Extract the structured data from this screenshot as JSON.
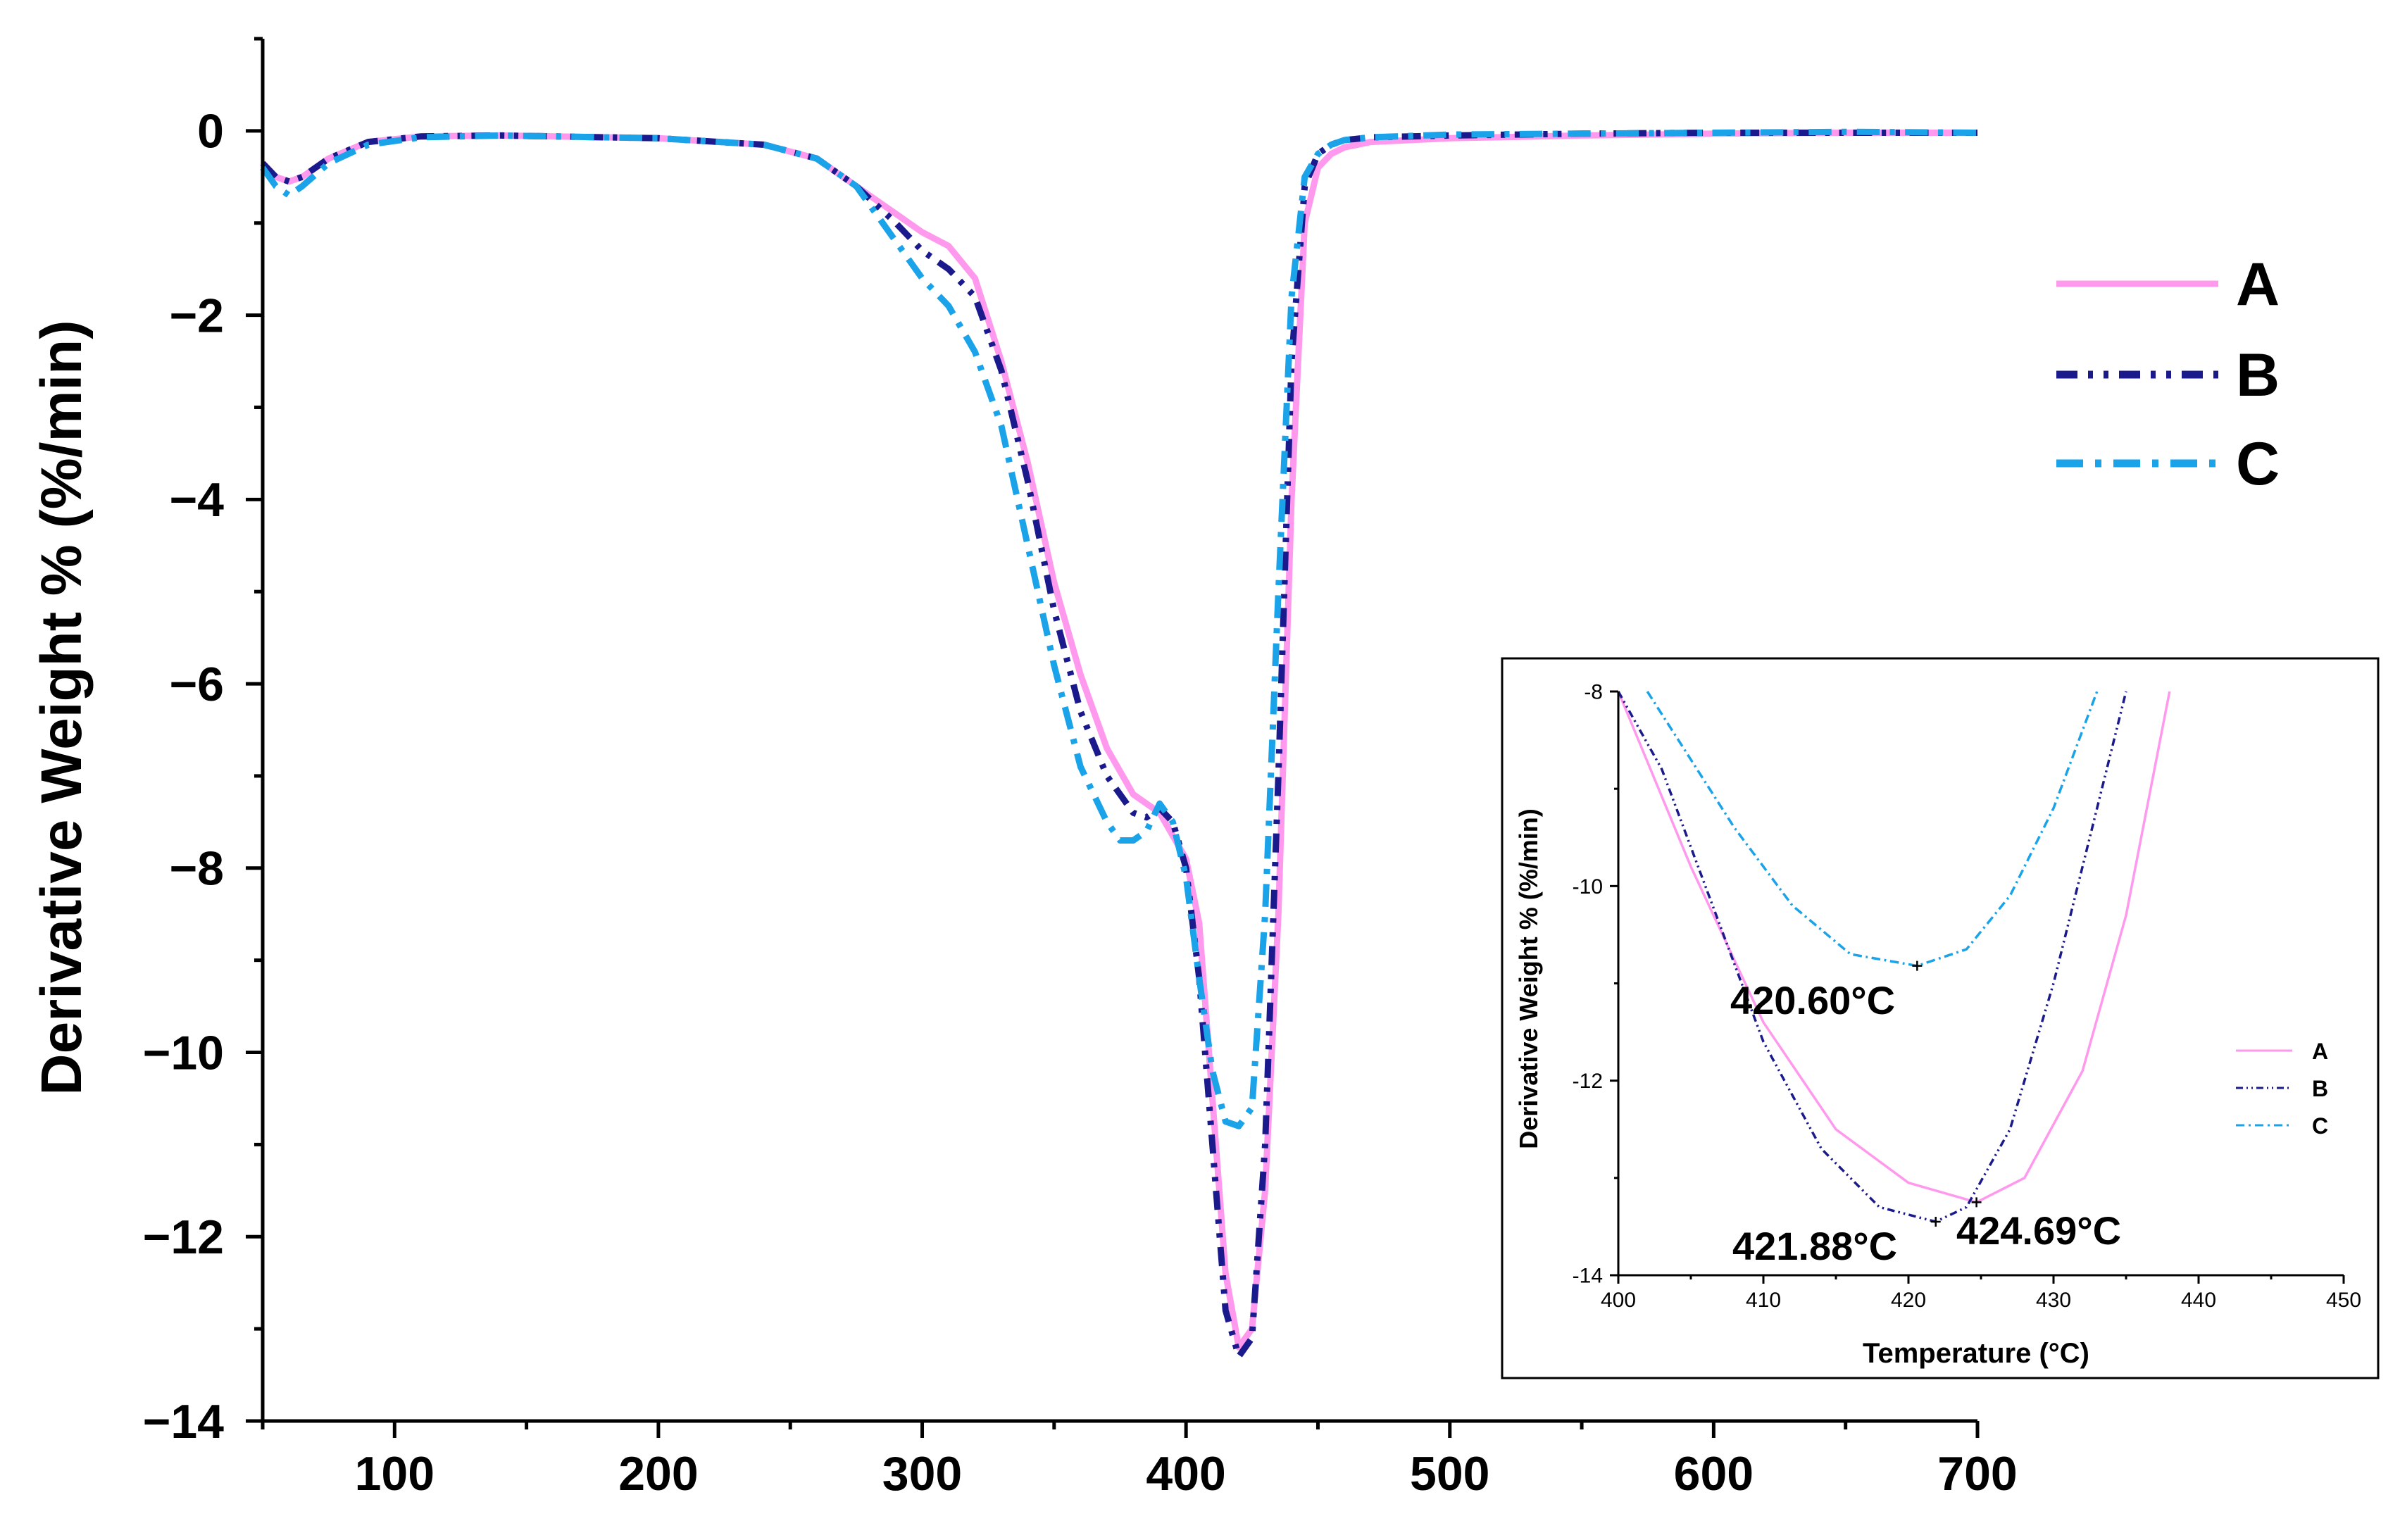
{
  "chart_data": [
    {
      "type": "line",
      "title": "",
      "xlabel": "",
      "ylabel": "Derivative Weight % (%/min)",
      "xlim": [
        50,
        700
      ],
      "ylim": [
        -14,
        1
      ],
      "xticks": [
        "100",
        "200",
        "300",
        "400",
        "500",
        "600",
        "700"
      ],
      "yticks": [
        "0",
        "−2",
        "−4",
        "−6",
        "−8",
        "−10",
        "−12",
        "−14"
      ],
      "legend_position": "top-right",
      "series": [
        {
          "name": "A",
          "color": "#ff99ee",
          "style": "solid",
          "x": [
            50,
            55,
            60,
            65,
            75,
            90,
            110,
            140,
            200,
            240,
            260,
            275,
            290,
            300,
            310,
            320,
            330,
            340,
            350,
            360,
            370,
            380,
            390,
            400,
            405,
            410,
            415,
            420,
            425,
            430,
            435,
            440,
            445,
            450,
            455,
            460,
            470,
            500,
            550,
            600,
            650,
            700
          ],
          "y": [
            -0.35,
            -0.5,
            -0.55,
            -0.5,
            -0.3,
            -0.12,
            -0.06,
            -0.05,
            -0.08,
            -0.15,
            -0.3,
            -0.6,
            -0.9,
            -1.1,
            -1.25,
            -1.6,
            -2.5,
            -3.6,
            -4.9,
            -5.9,
            -6.7,
            -7.2,
            -7.4,
            -7.9,
            -8.6,
            -10.5,
            -12.4,
            -13.2,
            -13.0,
            -11.5,
            -8.5,
            -4.0,
            -1.0,
            -0.4,
            -0.25,
            -0.18,
            -0.12,
            -0.08,
            -0.05,
            -0.03,
            -0.02,
            -0.02
          ]
        },
        {
          "name": "B",
          "color": "#1a1a8c",
          "style": "dash-dot-dot",
          "x": [
            50,
            55,
            60,
            65,
            75,
            90,
            110,
            140,
            200,
            240,
            260,
            275,
            290,
            300,
            310,
            320,
            330,
            340,
            350,
            360,
            370,
            380,
            385,
            390,
            395,
            400,
            405,
            410,
            415,
            420,
            425,
            430,
            435,
            440,
            445,
            450,
            455,
            460,
            470,
            500,
            550,
            600,
            650,
            700
          ],
          "y": [
            -0.35,
            -0.5,
            -0.55,
            -0.5,
            -0.3,
            -0.12,
            -0.06,
            -0.05,
            -0.08,
            -0.15,
            -0.3,
            -0.6,
            -1.0,
            -1.3,
            -1.5,
            -1.8,
            -2.6,
            -3.8,
            -5.2,
            -6.3,
            -7.0,
            -7.4,
            -7.45,
            -7.35,
            -7.5,
            -8.0,
            -9.2,
            -11.0,
            -12.8,
            -13.3,
            -13.1,
            -11.0,
            -7.0,
            -2.5,
            -0.6,
            -0.25,
            -0.15,
            -0.1,
            -0.07,
            -0.05,
            -0.03,
            -0.02,
            -0.02,
            -0.02
          ]
        },
        {
          "name": "C",
          "color": "#1aa3e8",
          "style": "dash-dot",
          "x": [
            50,
            55,
            60,
            65,
            75,
            90,
            110,
            140,
            200,
            240,
            260,
            275,
            290,
            300,
            310,
            320,
            330,
            340,
            350,
            360,
            370,
            375,
            380,
            385,
            390,
            395,
            400,
            405,
            410,
            415,
            420,
            425,
            430,
            435,
            440,
            445,
            450,
            455,
            460,
            470,
            500,
            550,
            600,
            650,
            700
          ],
          "y": [
            -0.4,
            -0.6,
            -0.7,
            -0.6,
            -0.35,
            -0.15,
            -0.07,
            -0.05,
            -0.08,
            -0.15,
            -0.3,
            -0.6,
            -1.2,
            -1.6,
            -1.9,
            -2.4,
            -3.2,
            -4.5,
            -5.8,
            -6.9,
            -7.5,
            -7.7,
            -7.7,
            -7.6,
            -7.3,
            -7.5,
            -8.1,
            -9.2,
            -10.2,
            -10.75,
            -10.8,
            -10.6,
            -8.5,
            -5.0,
            -1.8,
            -0.5,
            -0.25,
            -0.15,
            -0.1,
            -0.07,
            -0.04,
            -0.03,
            -0.02,
            -0.01,
            -0.02
          ]
        }
      ]
    },
    {
      "type": "line",
      "title": "",
      "xlabel": "Temperature (°C)",
      "ylabel": "Derivative Weight % (%/min)",
      "xlim": [
        400,
        450
      ],
      "ylim": [
        -14,
        -8
      ],
      "xticks": [
        "400",
        "410",
        "420",
        "430",
        "440",
        "450"
      ],
      "yticks": [
        "-8",
        "-10",
        "-12",
        "-14"
      ],
      "legend_position": "right",
      "series": [
        {
          "name": "A",
          "color": "#ff99ee",
          "style": "solid",
          "x": [
            400,
            405,
            410,
            415,
            420,
            424.69,
            428,
            432,
            435,
            438
          ],
          "y": [
            -8.0,
            -9.8,
            -11.4,
            -12.5,
            -13.05,
            -13.25,
            -13.0,
            -11.9,
            -10.3,
            -8.0
          ]
        },
        {
          "name": "B",
          "color": "#1a1a8c",
          "style": "dash-dot-dot",
          "x": [
            400,
            403,
            406,
            410,
            414,
            418,
            421.88,
            424,
            427,
            430,
            433,
            435
          ],
          "y": [
            -8.0,
            -8.8,
            -10.0,
            -11.6,
            -12.7,
            -13.3,
            -13.45,
            -13.3,
            -12.5,
            -11.0,
            -9.2,
            -8.0
          ]
        },
        {
          "name": "C",
          "color": "#1aa3e8",
          "style": "dash-dot",
          "x": [
            402,
            405,
            408,
            412,
            416,
            420.6,
            424,
            427,
            430,
            433
          ],
          "y": [
            -8.0,
            -8.7,
            -9.4,
            -10.2,
            -10.7,
            -10.82,
            -10.65,
            -10.1,
            -9.2,
            -8.0
          ]
        }
      ],
      "annotations": [
        {
          "text": "420.60°C",
          "x": 420.6,
          "y": -10.82
        },
        {
          "text": "421.88°C",
          "x": 421.88,
          "y": -13.45
        },
        {
          "text": "424.69°C",
          "x": 424.69,
          "y": -13.25
        }
      ]
    }
  ]
}
